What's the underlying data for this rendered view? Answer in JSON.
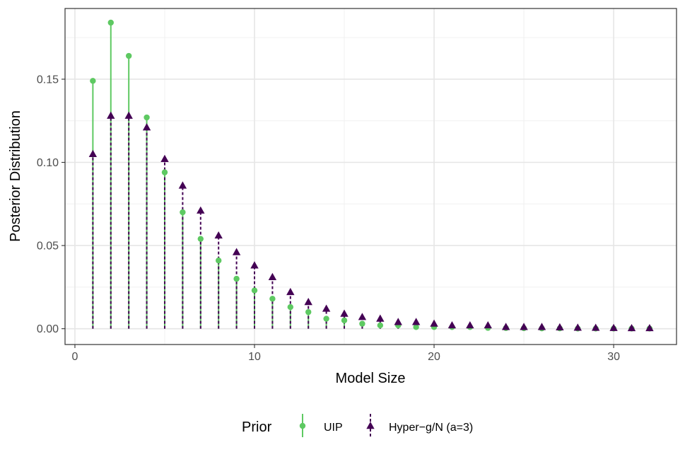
{
  "chart_data": {
    "type": "lollipop",
    "xlabel": "Model Size",
    "ylabel": "Posterior Distribution",
    "xlim": [
      -0.55,
      33.5
    ],
    "ylim": [
      -0.0095,
      0.1925
    ],
    "x_ticks": [
      0,
      10,
      20,
      30
    ],
    "x_tick_labels": [
      "0",
      "10",
      "20",
      "30"
    ],
    "y_ticks": [
      0.0,
      0.05,
      0.1,
      0.15
    ],
    "y_tick_labels": [
      "0.00",
      "0.05",
      "0.10",
      "0.15"
    ],
    "grid": true,
    "legend_position": "bottom",
    "legend_title": "Prior",
    "x": [
      1,
      2,
      3,
      4,
      5,
      6,
      7,
      8,
      9,
      10,
      11,
      12,
      13,
      14,
      15,
      16,
      17,
      18,
      19,
      20,
      21,
      22,
      23,
      24,
      25,
      26,
      27,
      28,
      29,
      30,
      31,
      32
    ],
    "series": [
      {
        "name": "UIP",
        "color": "#5ec962",
        "line": "solid",
        "marker": "circle",
        "values": [
          0.149,
          0.184,
          0.164,
          0.127,
          0.094,
          0.07,
          0.054,
          0.041,
          0.03,
          0.023,
          0.018,
          0.013,
          0.01,
          0.006,
          0.005,
          0.003,
          0.002,
          0.002,
          0.001,
          0.001,
          0.001,
          0.001,
          0.0005,
          0.0004,
          0.0003,
          0.0002,
          0.0002,
          0.0001,
          0.0001,
          0.0001,
          0.0001,
          0.0001
        ]
      },
      {
        "name": "Hyper−g/N (a=3)",
        "color": "#440154",
        "line": "dashed",
        "marker": "triangle",
        "values": [
          0.105,
          0.128,
          0.128,
          0.121,
          0.102,
          0.086,
          0.071,
          0.056,
          0.046,
          0.038,
          0.031,
          0.022,
          0.016,
          0.012,
          0.009,
          0.007,
          0.006,
          0.004,
          0.004,
          0.003,
          0.002,
          0.002,
          0.002,
          0.001,
          0.001,
          0.001,
          0.0008,
          0.0006,
          0.0005,
          0.0004,
          0.0003,
          0.0003
        ]
      }
    ]
  }
}
